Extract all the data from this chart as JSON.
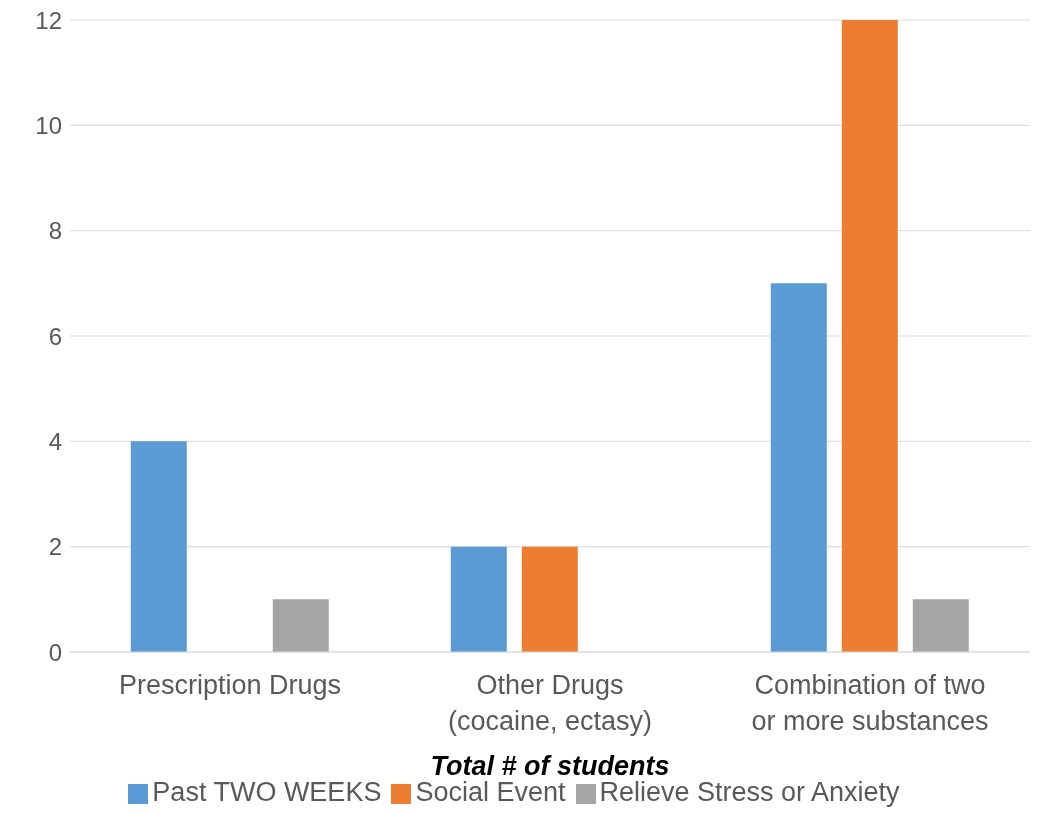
{
  "chart_data": {
    "type": "bar",
    "xlabel": "Total # of students",
    "categories": [
      "Prescription Drugs",
      "Other Drugs (cocaine, ectasy)",
      "Combination of two or more substances"
    ],
    "series": [
      {
        "name": "Past TWO WEEKS",
        "color": "#5b9bd5",
        "values": [
          4,
          2,
          7
        ]
      },
      {
        "name": "Social Event",
        "color": "#ed7d31",
        "values": [
          0,
          2,
          12
        ]
      },
      {
        "name": "Relieve Stress or Anxiety",
        "color": "#a5a5a5",
        "values": [
          1,
          0,
          1
        ]
      }
    ],
    "ylim": [
      0,
      12
    ],
    "yticks": [
      0,
      2,
      4,
      6,
      8,
      10,
      12
    ],
    "grid": "y",
    "legend": "bottom"
  }
}
